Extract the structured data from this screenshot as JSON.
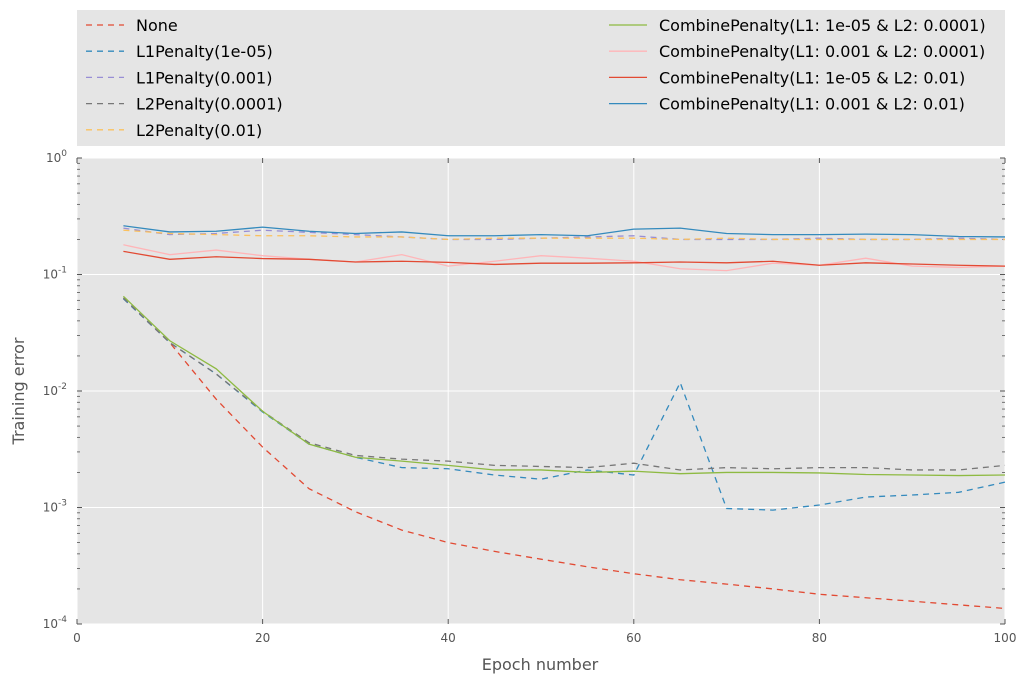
{
  "chart_data": {
    "type": "line",
    "title": "",
    "xlabel": "Epoch number",
    "ylabel": "Training error",
    "xscale": "linear",
    "yscale": "log",
    "xlim": [
      0,
      100
    ],
    "ylim": [
      0.0001,
      1
    ],
    "x_ticks": [
      0,
      20,
      40,
      60,
      80,
      100
    ],
    "x_tick_labels": [
      "0",
      "20",
      "40",
      "60",
      "80",
      "100"
    ],
    "y_ticks": [
      0.0001,
      0.001,
      0.01,
      0.1,
      1
    ],
    "y_tick_labels": [
      {
        "base": "10",
        "exp": "-4"
      },
      {
        "base": "10",
        "exp": "-3"
      },
      {
        "base": "10",
        "exp": "-2"
      },
      {
        "base": "10",
        "exp": "-1"
      },
      {
        "base": "10",
        "exp": "0"
      }
    ],
    "grid": true,
    "style": "ggplot",
    "background_color": "#e5e5e5",
    "legend_placement": "above plot, two columns",
    "x": [
      5,
      10,
      15,
      20,
      25,
      30,
      35,
      40,
      45,
      50,
      55,
      60,
      65,
      70,
      75,
      80,
      85,
      90,
      95,
      100
    ],
    "series": [
      {
        "name": "None",
        "color": "#e24a33",
        "dashed": true,
        "values": [
          0.062,
          0.026,
          0.0085,
          0.0033,
          0.00145,
          0.00092,
          0.00064,
          0.0005,
          0.00042,
          0.00036,
          0.00031,
          0.00027,
          0.00024,
          0.00022,
          0.0002,
          0.00018,
          0.000168,
          0.000157,
          0.000146,
          0.000136
        ]
      },
      {
        "name": "L1Penalty(1e-05)",
        "color": "#348abd",
        "dashed": true,
        "values": [
          0.062,
          0.026,
          0.014,
          0.0066,
          0.0035,
          0.0027,
          0.0022,
          0.00215,
          0.0019,
          0.00175,
          0.0021,
          0.0019,
          0.0118,
          0.00098,
          0.00095,
          0.00105,
          0.00123,
          0.00128,
          0.00135,
          0.00165
        ]
      },
      {
        "name": "L1Penalty(0.001)",
        "color": "#988ed5",
        "dashed": true,
        "values": [
          0.25,
          0.22,
          0.225,
          0.24,
          0.23,
          0.22,
          0.21,
          0.2,
          0.2,
          0.205,
          0.21,
          0.215,
          0.2,
          0.2,
          0.2,
          0.205,
          0.2,
          0.2,
          0.205,
          0.2
        ]
      },
      {
        "name": "L2Penalty(0.0001)",
        "color": "#777777",
        "dashed": true,
        "values": [
          0.063,
          0.026,
          0.014,
          0.0067,
          0.0036,
          0.0028,
          0.0026,
          0.0025,
          0.0023,
          0.00225,
          0.0022,
          0.0024,
          0.0021,
          0.0022,
          0.00215,
          0.0022,
          0.0022,
          0.0021,
          0.0021,
          0.0023
        ]
      },
      {
        "name": "L2Penalty(0.01)",
        "color": "#fbc15e",
        "dashed": true,
        "values": [
          0.24,
          0.225,
          0.22,
          0.215,
          0.215,
          0.21,
          0.21,
          0.2,
          0.205,
          0.205,
          0.205,
          0.205,
          0.2,
          0.205,
          0.2,
          0.2,
          0.2,
          0.2,
          0.2,
          0.2
        ]
      },
      {
        "name": "CombinePenalty(L1: 1e-05 & L2: 0.0001)",
        "color": "#8eba42",
        "dashed": false,
        "values": [
          0.065,
          0.027,
          0.0155,
          0.0067,
          0.0035,
          0.0027,
          0.0025,
          0.0023,
          0.0021,
          0.0021,
          0.002,
          0.00205,
          0.00195,
          0.002,
          0.002,
          0.00198,
          0.00192,
          0.0019,
          0.00188,
          0.0019
        ]
      },
      {
        "name": "CombinePenalty(L1: 0.001 & L2: 0.0001)",
        "color": "#ffb5b8",
        "dashed": false,
        "values": [
          0.18,
          0.148,
          0.162,
          0.145,
          0.135,
          0.128,
          0.148,
          0.118,
          0.13,
          0.145,
          0.138,
          0.13,
          0.112,
          0.108,
          0.125,
          0.12,
          0.138,
          0.118,
          0.115,
          0.118
        ]
      },
      {
        "name": "CombinePenalty(L1: 1e-05 & L2: 0.01)",
        "color": "#e24a33",
        "dashed": false,
        "values": [
          0.158,
          0.135,
          0.142,
          0.137,
          0.135,
          0.128,
          0.13,
          0.127,
          0.122,
          0.125,
          0.125,
          0.126,
          0.128,
          0.126,
          0.13,
          0.12,
          0.126,
          0.123,
          0.12,
          0.118
        ]
      },
      {
        "name": "CombinePenalty(L1: 0.001 & L2: 0.01)",
        "color": "#348abd",
        "dashed": false,
        "values": [
          0.262,
          0.232,
          0.235,
          0.255,
          0.235,
          0.225,
          0.232,
          0.215,
          0.215,
          0.22,
          0.215,
          0.245,
          0.25,
          0.225,
          0.22,
          0.22,
          0.222,
          0.22,
          0.212,
          0.21
        ]
      }
    ]
  }
}
